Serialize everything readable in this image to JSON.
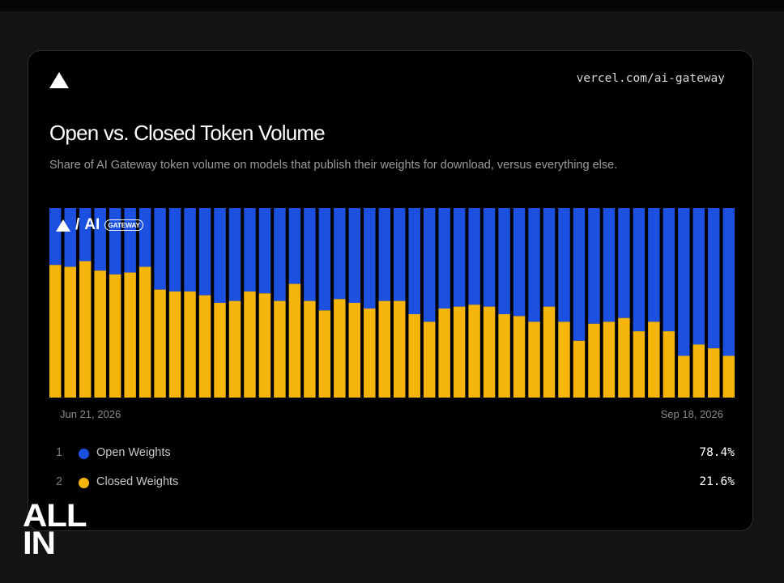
{
  "header": {
    "url": "vercel.com/ai-gateway"
  },
  "title": "Open vs. Closed Token Volume",
  "subtitle": "Share of AI Gateway token volume on models that publish their weights for download, versus everything else.",
  "watermark": {
    "slash": "/",
    "ai": "AI",
    "gateway": "GATEWAY"
  },
  "chart_data": {
    "type": "bar",
    "stacked": true,
    "normalized": true,
    "x_start_label": "Jun 21, 2026",
    "x_end_label": "Sep 18, 2026",
    "ylim": [
      0,
      100
    ],
    "grid": false,
    "series": [
      {
        "name": "Closed Weights",
        "color": "#f5b50c",
        "values": [
          70,
          69,
          72,
          67,
          65,
          66,
          69,
          57,
          56,
          56,
          54,
          50,
          51,
          56,
          55,
          51,
          60,
          51,
          46,
          52,
          50,
          47,
          51,
          51,
          44,
          40,
          47,
          48,
          49,
          48,
          44,
          43,
          40,
          48,
          40,
          30,
          39,
          40,
          42,
          35,
          40,
          35,
          22,
          28,
          26,
          22
        ]
      },
      {
        "name": "Open Weights",
        "color": "#1b50e0",
        "values": [
          30,
          31,
          28,
          33,
          35,
          34,
          31,
          43,
          44,
          44,
          46,
          50,
          49,
          44,
          45,
          49,
          40,
          49,
          54,
          48,
          50,
          53,
          49,
          49,
          56,
          60,
          53,
          52,
          51,
          52,
          56,
          57,
          60,
          52,
          60,
          70,
          61,
          60,
          58,
          65,
          60,
          65,
          78,
          72,
          74,
          78
        ]
      }
    ]
  },
  "legend": [
    {
      "rank": "1",
      "name": "Open Weights",
      "value": "78.4%",
      "color": "#1b50e0"
    },
    {
      "rank": "2",
      "name": "Closed Weights",
      "value": "21.6%",
      "color": "#f5b50c"
    }
  ],
  "branding": {
    "line1": "ALL",
    "line2": "IN"
  }
}
